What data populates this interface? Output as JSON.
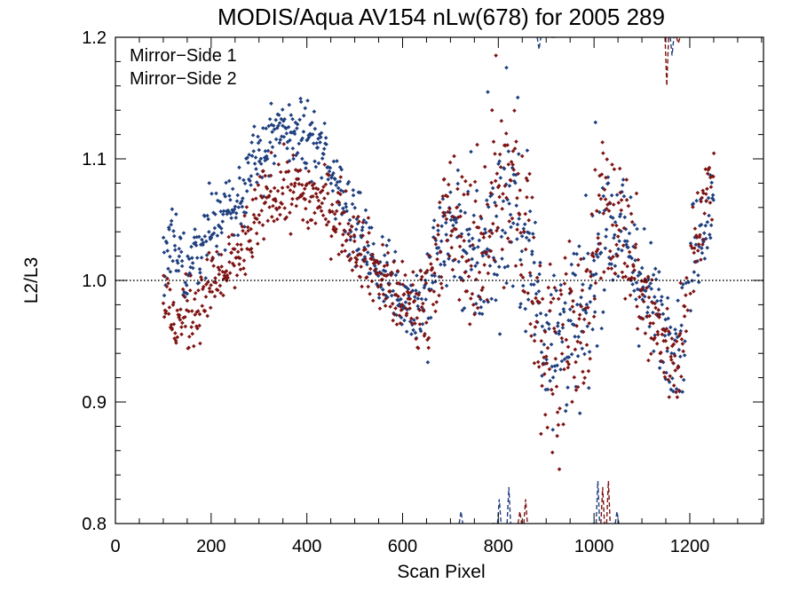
{
  "chart_data": {
    "type": "scatter",
    "title": "MODIS/Aqua AV154 nLw(678) for 2005 289",
    "xlabel": "Scan Pixel",
    "ylabel": "L2/L3",
    "xlim": [
      0,
      1354
    ],
    "ylim": [
      0.8,
      1.2
    ],
    "x_ticks": [
      0,
      200,
      400,
      600,
      800,
      1000,
      1200
    ],
    "x_tick_labels": [
      "0",
      "200",
      "400",
      "600",
      "800",
      "1000",
      "1200"
    ],
    "y_ticks": [
      0.8,
      0.9,
      1.0,
      1.1,
      1.2
    ],
    "y_tick_labels": [
      "0.8",
      "0.9",
      "1.0",
      "1.1",
      "1.2"
    ],
    "reference_line": {
      "y": 1.0,
      "style": "dotted"
    },
    "grid": false,
    "legend_position": "top-left",
    "series": [
      {
        "name": "Mirror−Side 1",
        "color": "#1f3f7f",
        "profile": [
          [
            100,
            1.01
          ],
          [
            120,
            1.025
          ],
          [
            150,
            1.01
          ],
          [
            180,
            1.03
          ],
          [
            200,
            1.045
          ],
          [
            240,
            1.06
          ],
          [
            280,
            1.085
          ],
          [
            320,
            1.115
          ],
          [
            360,
            1.12
          ],
          [
            400,
            1.12
          ],
          [
            430,
            1.105
          ],
          [
            460,
            1.085
          ],
          [
            500,
            1.05
          ],
          [
            540,
            1.015
          ],
          [
            580,
            0.995
          ],
          [
            620,
            0.98
          ],
          [
            650,
            0.985
          ],
          [
            680,
            1.04
          ],
          [
            720,
            1.04
          ],
          [
            760,
            1.01
          ],
          [
            800,
            1.045
          ],
          [
            830,
            1.065
          ],
          [
            860,
            1.035
          ],
          [
            890,
            0.97
          ],
          [
            920,
            0.955
          ],
          [
            960,
            0.96
          ],
          [
            990,
            0.975
          ],
          [
            1020,
            1.05
          ],
          [
            1050,
            1.045
          ],
          [
            1080,
            1.02
          ],
          [
            1110,
            0.985
          ],
          [
            1140,
            0.965
          ],
          [
            1170,
            0.955
          ],
          [
            1190,
            0.96
          ],
          [
            1210,
            1.03
          ],
          [
            1250,
            1.07
          ]
        ],
        "spread": [
          [
            100,
            0.015
          ],
          [
            600,
            0.015
          ],
          [
            700,
            0.03
          ],
          [
            900,
            0.04
          ],
          [
            1100,
            0.025
          ],
          [
            1250,
            0.02
          ]
        ]
      },
      {
        "name": "Mirror−Side 2",
        "color": "#7f1414",
        "profile": [
          [
            100,
            0.99
          ],
          [
            120,
            0.965
          ],
          [
            150,
            0.97
          ],
          [
            180,
            0.985
          ],
          [
            200,
            0.995
          ],
          [
            240,
            1.01
          ],
          [
            280,
            1.035
          ],
          [
            320,
            1.07
          ],
          [
            360,
            1.075
          ],
          [
            400,
            1.07
          ],
          [
            430,
            1.065
          ],
          [
            460,
            1.055
          ],
          [
            500,
            1.035
          ],
          [
            540,
            1.01
          ],
          [
            580,
            0.99
          ],
          [
            620,
            0.975
          ],
          [
            650,
            0.98
          ],
          [
            680,
            1.045
          ],
          [
            720,
            1.035
          ],
          [
            760,
            1.02
          ],
          [
            800,
            1.075
          ],
          [
            830,
            1.075
          ],
          [
            860,
            1.04
          ],
          [
            890,
            0.95
          ],
          [
            920,
            0.945
          ],
          [
            960,
            0.955
          ],
          [
            990,
            0.97
          ],
          [
            1020,
            1.07
          ],
          [
            1050,
            1.05
          ],
          [
            1080,
            1.02
          ],
          [
            1110,
            0.975
          ],
          [
            1140,
            0.95
          ],
          [
            1170,
            0.935
          ],
          [
            1190,
            0.96
          ],
          [
            1210,
            1.04
          ],
          [
            1250,
            1.085
          ]
        ],
        "spread": [
          [
            100,
            0.015
          ],
          [
            600,
            0.015
          ],
          [
            700,
            0.03
          ],
          [
            900,
            0.04
          ],
          [
            1100,
            0.025
          ],
          [
            1250,
            0.02
          ]
        ]
      }
    ],
    "dashed_spikes_bottom": [
      {
        "series": 0,
        "x": 722,
        "y": 0.81
      },
      {
        "series": 0,
        "x": 790,
        "y": 0.8
      },
      {
        "series": 0,
        "x": 802,
        "y": 0.82
      },
      {
        "series": 0,
        "x": 822,
        "y": 0.83
      },
      {
        "series": 1,
        "x": 845,
        "y": 0.81
      },
      {
        "series": 1,
        "x": 857,
        "y": 0.82
      },
      {
        "series": 0,
        "x": 998,
        "y": 0.8
      },
      {
        "series": 0,
        "x": 1008,
        "y": 0.835
      },
      {
        "series": 1,
        "x": 1018,
        "y": 0.83
      },
      {
        "series": 1,
        "x": 1030,
        "y": 0.835
      },
      {
        "series": 0,
        "x": 1048,
        "y": 0.81
      }
    ],
    "dashed_spikes_top": [
      {
        "series": 0,
        "x": 885,
        "y": 1.19
      },
      {
        "series": 0,
        "x": 915,
        "y": 1.2
      },
      {
        "series": 1,
        "x": 1152,
        "y": 1.16
      },
      {
        "series": 0,
        "x": 1163,
        "y": 1.185
      },
      {
        "series": 1,
        "x": 1176,
        "y": 1.195
      }
    ],
    "outliers": [
      {
        "series": 1,
        "x": 795,
        "y": 1.185
      },
      {
        "series": 0,
        "x": 817,
        "y": 1.175
      },
      {
        "series": 0,
        "x": 778,
        "y": 1.155
      },
      {
        "series": 1,
        "x": 787,
        "y": 1.14
      },
      {
        "series": 0,
        "x": 1003,
        "y": 1.13
      }
    ]
  }
}
